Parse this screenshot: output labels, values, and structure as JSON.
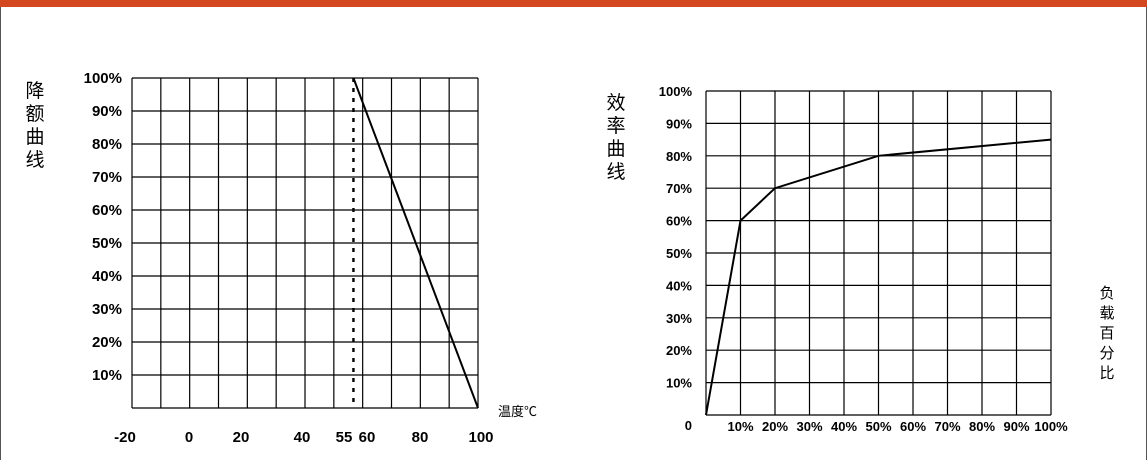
{
  "colors": {
    "top_bar": "#d4481f",
    "grid": "#000000",
    "curve": "#000000"
  },
  "chart_data": [
    {
      "type": "line",
      "ylabel": "降额曲线",
      "xlabel": "温度℃",
      "x_ticks": [
        "-20",
        "0",
        "20",
        "40",
        "55",
        "60",
        "80",
        "100"
      ],
      "y_ticks": [
        "100%",
        "90%",
        "80%",
        "70%",
        "60%",
        "50%",
        "40%",
        "30%",
        "20%",
        "10%"
      ],
      "xlim": [
        -25,
        100
      ],
      "ylim": [
        0,
        100
      ],
      "grid": true,
      "series": [
        {
          "x": [
            55,
            100
          ],
          "y": [
            100,
            0
          ]
        }
      ],
      "reference_line": {
        "x": 55,
        "style": "dotted"
      }
    },
    {
      "type": "line",
      "ylabel": "效率曲线",
      "xlabel": "负载百分比",
      "x_ticks": [
        "10%",
        "20%",
        "30%",
        "40%",
        "50%",
        "60%",
        "70%",
        "80%",
        "90%",
        "100%"
      ],
      "y_ticks": [
        "100%",
        "90%",
        "80%",
        "70%",
        "60%",
        "50%",
        "40%",
        "30%",
        "20%",
        "10%",
        "0"
      ],
      "xlim": [
        0,
        100
      ],
      "ylim": [
        0,
        100
      ],
      "grid": true,
      "series": [
        {
          "x": [
            0,
            10,
            20,
            50,
            100
          ],
          "y": [
            0,
            60,
            70,
            80,
            85
          ]
        }
      ]
    }
  ]
}
